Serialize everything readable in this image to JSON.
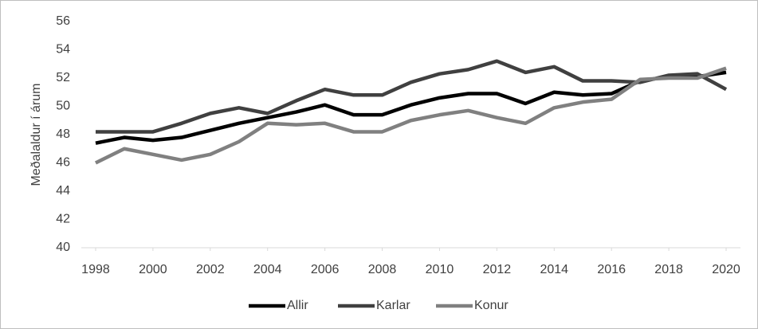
{
  "chart_data": {
    "type": "line",
    "y_label": "Meðalaldur í árum",
    "x": [
      1998,
      1999,
      2000,
      2001,
      2002,
      2003,
      2004,
      2005,
      2006,
      2007,
      2008,
      2009,
      2010,
      2011,
      2012,
      2013,
      2014,
      2015,
      2016,
      2017,
      2018,
      2019,
      2020
    ],
    "series": [
      {
        "name": "Allir",
        "color": "#000000",
        "values": [
          47.4,
          47.8,
          47.6,
          47.8,
          48.3,
          48.8,
          49.2,
          49.6,
          50.1,
          49.4,
          49.4,
          50.1,
          50.6,
          50.9,
          50.9,
          50.2,
          51.0,
          50.8,
          50.9,
          51.8,
          52.1,
          52.1,
          52.4
        ]
      },
      {
        "name": "Karlar",
        "color": "#404040",
        "values": [
          48.2,
          48.2,
          48.2,
          48.8,
          49.5,
          49.9,
          49.5,
          50.4,
          51.2,
          50.8,
          50.8,
          51.7,
          52.3,
          52.6,
          53.2,
          52.4,
          52.8,
          51.8,
          51.8,
          51.7,
          52.2,
          52.3,
          51.2
        ]
      },
      {
        "name": "Konur",
        "color": "#808080",
        "values": [
          46.0,
          47.0,
          46.6,
          46.2,
          46.6,
          47.5,
          48.8,
          48.7,
          48.8,
          48.2,
          48.2,
          49.0,
          49.4,
          49.7,
          49.2,
          48.8,
          49.9,
          50.3,
          50.5,
          51.9,
          52.0,
          52.0,
          52.7
        ]
      }
    ],
    "xlim": [
      1997.5,
      2020.5
    ],
    "xticks": [
      1998,
      2000,
      2002,
      2004,
      2006,
      2008,
      2010,
      2012,
      2014,
      2016,
      2018,
      2020
    ],
    "ylim": [
      40,
      56
    ],
    "yticks": [
      40,
      42,
      44,
      46,
      48,
      50,
      52,
      54,
      56
    ],
    "grid": false,
    "legend": "bottom"
  }
}
